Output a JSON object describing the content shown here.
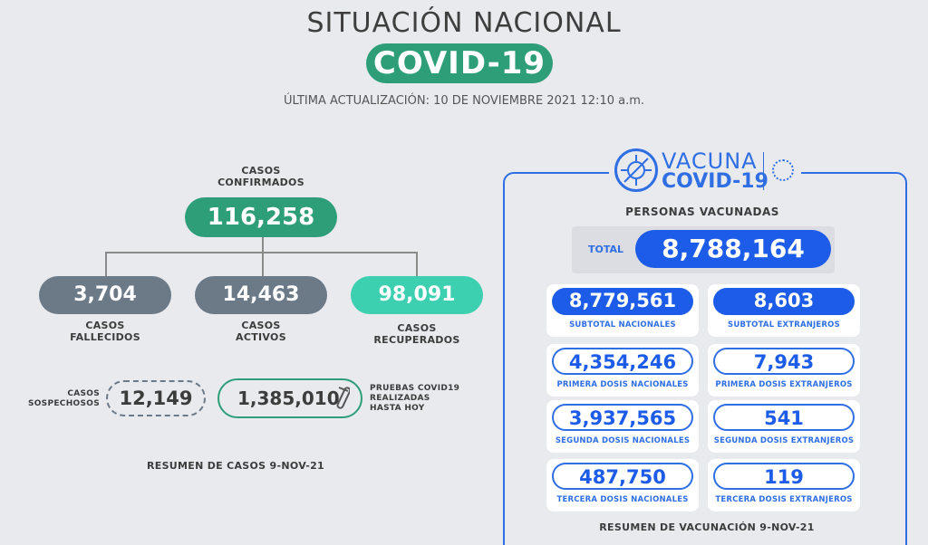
{
  "header": {
    "title": "SITUACIÓN NACIONAL",
    "covid_label": "COVID-19",
    "last_update": "ÚLTIMA ACTUALIZACIÓN: 10 DE NOVIEMBRE 2021 12:10 a.m."
  },
  "cases": {
    "confirmed_label_line1": "CASOS",
    "confirmed_label_line2": "CONFIRMADOS",
    "confirmed_value": "116,258",
    "deaths_value": "3,704",
    "deaths_label_line1": "CASOS",
    "deaths_label_line2": "FALLECIDOS",
    "active_value": "14,463",
    "active_label_line1": "CASOS",
    "active_label_line2": "ACTIVOS",
    "recovered_value": "98,091",
    "recovered_label_line1": "CASOS",
    "recovered_label_line2": "RECUPERADOS",
    "suspect_label_line1": "CASOS",
    "suspect_label_line2": "SOSPECHOSOS",
    "suspect_value": "12,149",
    "tests_value": "1,385,010",
    "tests_label_line1": "PRUEBAS COVID19",
    "tests_label_line2": "REALIZADAS",
    "tests_label_line3": "HASTA HOY",
    "summary": "RESUMEN DE CASOS 9-NOV-21"
  },
  "vaccination": {
    "logo_word": "VACUNA",
    "logo_covid": "COVID-19",
    "persons_title": "PERSONAS VACUNADAS",
    "total_label": "TOTAL",
    "total_value": "8,788,164",
    "cards": [
      {
        "value": "8,779,561",
        "label": "SUBTOTAL NACIONALES"
      },
      {
        "value": "8,603",
        "label": "SUBTOTAL EXTRANJEROS"
      },
      {
        "value": "4,354,246",
        "label": "PRIMERA DOSIS NACIONALES"
      },
      {
        "value": "7,943",
        "label": "PRIMERA DOSIS EXTRANJEROS"
      },
      {
        "value": "3,937,565",
        "label": "SEGUNDA DOSIS NACIONALES"
      },
      {
        "value": "541",
        "label": "SEGUNDA DOSIS EXTRANJEROS"
      },
      {
        "value": "487,750",
        "label": "TERCERA DOSIS NACIONALES"
      },
      {
        "value": "119",
        "label": "TERCERA DOSIS EXTRANJEROS"
      }
    ],
    "summary": "RESUMEN DE VACUNACIÓN 9-NOV-21"
  },
  "colors": {
    "green": "#2e9e79",
    "teal": "#3dd0b0",
    "slate": "#6c7a88",
    "blue": "#1c5ce8"
  }
}
